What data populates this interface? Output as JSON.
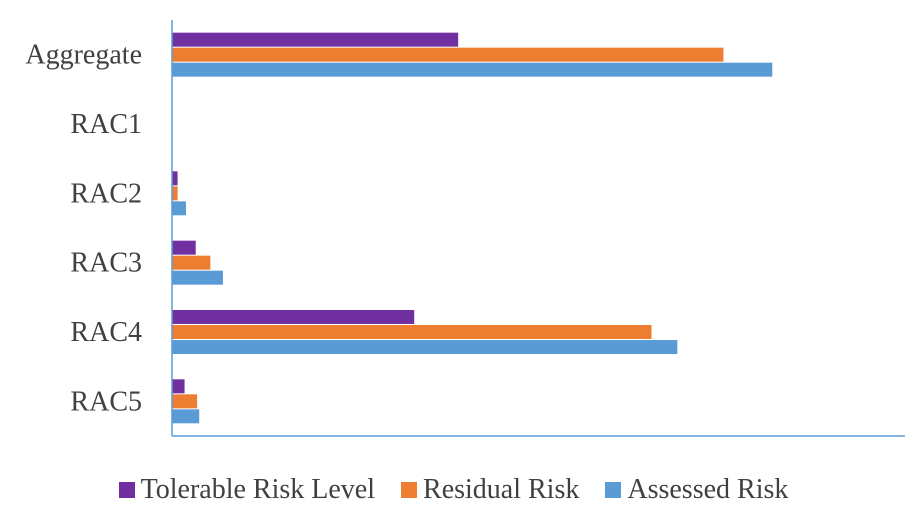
{
  "chart_data": {
    "type": "bar",
    "orientation": "horizontal",
    "title": "",
    "xlabel": "",
    "ylabel": "",
    "categories": [
      "Aggregate",
      "RAC1",
      "RAC2",
      "RAC3",
      "RAC4",
      "RAC5"
    ],
    "series": [
      {
        "name": "Tolerable Risk Level",
        "color": "#7030A0",
        "values": [
          41,
          0,
          0.8,
          3.4,
          34.7,
          1.8
        ]
      },
      {
        "name": "Residual Risk",
        "color": "#ED7D31",
        "values": [
          79,
          0,
          0.8,
          5.5,
          68.7,
          3.6
        ]
      },
      {
        "name": "Assessed Risk",
        "color": "#5B9BD5",
        "values": [
          86,
          0,
          2.0,
          7.3,
          72.4,
          3.9
        ]
      }
    ],
    "xlim": [
      0,
      100
    ],
    "grid": false,
    "x_axis_visible": false,
    "legend_position": "bottom"
  }
}
